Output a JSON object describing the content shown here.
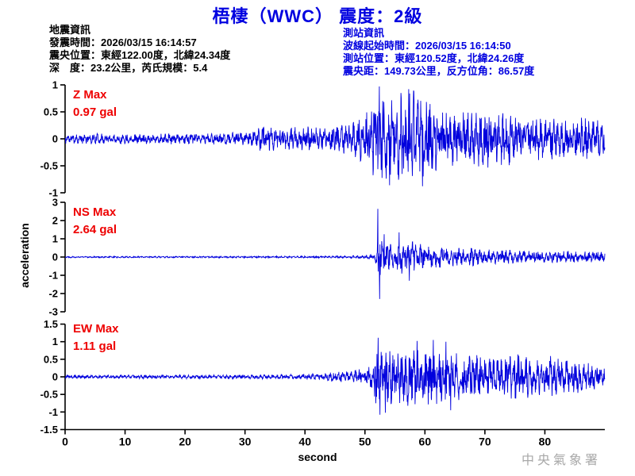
{
  "title": "梧棲（WWC） 震度：2級",
  "info_left": {
    "heading": "地震資訊",
    "lines": [
      "發震時間：2026/03/15 16:14:57",
      "震央位置：東經122.00度，北緯24.34度",
      "深　度：23.2公里，芮氏規模：5.4"
    ]
  },
  "info_right": {
    "heading": "測站資訊",
    "lines": [
      "波線起始時間：2026/03/15 16:14:50",
      "測站位置：東經120.52度，北緯24.26度",
      "震央距：149.73公里，反方位角：86.57度"
    ]
  },
  "watermark": "中央氣象署",
  "colors": {
    "title_blue": "#0000e0",
    "info_blue": "#0000e0",
    "trace_blue": "#0000dd",
    "annotation_red": "#ee0000",
    "axis_black": "#000000",
    "watermark_gray": "#a8a8a8"
  },
  "chart_data": {
    "type": "line",
    "subtype": "seismogram-3-component",
    "xlabel": "second",
    "ylabel": "acceleration",
    "unit": "gal",
    "x_range": [
      0,
      90
    ],
    "x_ticks": [
      0,
      10,
      20,
      30,
      40,
      50,
      60,
      70,
      80
    ],
    "grid": false,
    "traces": [
      {
        "id": "Z",
        "label": "Z Max",
        "max_label": "0.97 gal",
        "max_gal": 0.97,
        "ylim": [
          -1,
          1
        ],
        "yticks": [
          1,
          0.5,
          0,
          -0.5,
          -1
        ],
        "seed": 11,
        "envelope": [
          [
            0,
            0.09
          ],
          [
            15,
            0.09
          ],
          [
            25,
            0.1
          ],
          [
            31,
            0.12
          ],
          [
            33,
            0.25
          ],
          [
            34,
            0.22
          ],
          [
            36,
            0.18
          ],
          [
            38,
            0.2
          ],
          [
            40,
            0.22
          ],
          [
            43,
            0.2
          ],
          [
            46,
            0.25
          ],
          [
            48,
            0.3
          ],
          [
            50,
            0.45
          ],
          [
            51,
            0.6
          ],
          [
            52,
            0.85
          ],
          [
            53,
            0.95
          ],
          [
            54,
            0.85
          ],
          [
            55,
            0.7
          ],
          [
            56,
            0.85
          ],
          [
            57,
            0.75
          ],
          [
            58,
            0.9
          ],
          [
            59,
            0.75
          ],
          [
            60,
            0.8
          ],
          [
            61,
            0.65
          ],
          [
            62,
            0.6
          ],
          [
            64,
            0.5
          ],
          [
            66,
            0.45
          ],
          [
            68,
            0.5
          ],
          [
            70,
            0.55
          ],
          [
            72,
            0.45
          ],
          [
            74,
            0.5
          ],
          [
            76,
            0.4
          ],
          [
            78,
            0.35
          ],
          [
            80,
            0.42
          ],
          [
            82,
            0.35
          ],
          [
            84,
            0.3
          ],
          [
            86,
            0.4
          ],
          [
            88,
            0.35
          ],
          [
            90,
            0.3
          ]
        ],
        "peaks": [
          [
            52.4,
            0.97
          ],
          [
            54.1,
            -0.86
          ],
          [
            57.3,
            0.92
          ],
          [
            59.6,
            -0.88
          ]
        ]
      },
      {
        "id": "NS",
        "label": "NS Max",
        "max_label": "2.64 gal",
        "max_gal": 2.64,
        "ylim": [
          -3,
          3
        ],
        "yticks": [
          3,
          2,
          1,
          0,
          -1,
          -2,
          -3
        ],
        "seed": 22,
        "envelope": [
          [
            0,
            0.04
          ],
          [
            30,
            0.045
          ],
          [
            45,
            0.05
          ],
          [
            48,
            0.07
          ],
          [
            50,
            0.1
          ],
          [
            51.5,
            0.15
          ],
          [
            52,
            0.5
          ],
          [
            52.4,
            1.1
          ],
          [
            53,
            0.8
          ],
          [
            54,
            0.85
          ],
          [
            55,
            0.75
          ],
          [
            56,
            0.9
          ],
          [
            57,
            0.7
          ],
          [
            58,
            0.8
          ],
          [
            59,
            0.65
          ],
          [
            60,
            0.7
          ],
          [
            61,
            0.6
          ],
          [
            62,
            0.55
          ],
          [
            63,
            0.6
          ],
          [
            64,
            0.55
          ],
          [
            65,
            0.5
          ],
          [
            66,
            0.45
          ],
          [
            68,
            0.5
          ],
          [
            70,
            0.4
          ],
          [
            72,
            0.35
          ],
          [
            74,
            0.4
          ],
          [
            76,
            0.32
          ],
          [
            78,
            0.36
          ],
          [
            80,
            0.3
          ],
          [
            82,
            0.27
          ],
          [
            84,
            0.32
          ],
          [
            86,
            0.27
          ],
          [
            88,
            0.3
          ],
          [
            90,
            0.26
          ]
        ],
        "peaks": [
          [
            52.15,
            2.64
          ],
          [
            52.45,
            -2.3
          ],
          [
            53.2,
            1.25
          ],
          [
            55.7,
            1.35
          ],
          [
            57.4,
            -1.3
          ]
        ]
      },
      {
        "id": "EW",
        "label": "EW Max",
        "max_label": "1.11 gal",
        "max_gal": 1.11,
        "ylim": [
          -1.5,
          1.5
        ],
        "yticks": [
          1.5,
          1,
          0.5,
          0,
          -0.5,
          -1,
          -1.5
        ],
        "seed": 33,
        "envelope": [
          [
            0,
            0.05
          ],
          [
            25,
            0.05
          ],
          [
            35,
            0.06
          ],
          [
            40,
            0.08
          ],
          [
            43,
            0.1
          ],
          [
            45,
            0.13
          ],
          [
            47,
            0.16
          ],
          [
            49,
            0.2
          ],
          [
            50.5,
            0.25
          ],
          [
            51.3,
            0.5
          ],
          [
            51.8,
            1.0
          ],
          [
            52.5,
            0.9
          ],
          [
            53.5,
            0.8
          ],
          [
            55,
            0.75
          ],
          [
            56,
            0.8
          ],
          [
            58,
            0.85
          ],
          [
            60,
            0.75
          ],
          [
            61,
            0.8
          ],
          [
            63,
            0.7
          ],
          [
            65,
            0.65
          ],
          [
            67,
            0.6
          ],
          [
            69,
            0.65
          ],
          [
            71,
            0.55
          ],
          [
            73,
            0.6
          ],
          [
            75,
            0.65
          ],
          [
            77,
            0.55
          ],
          [
            79,
            0.5
          ],
          [
            81,
            0.55
          ],
          [
            83,
            0.5
          ],
          [
            85,
            0.45
          ],
          [
            87,
            0.4
          ],
          [
            89,
            0.32
          ],
          [
            90,
            0.3
          ]
        ],
        "peaks": [
          [
            52.2,
            1.11
          ],
          [
            52.5,
            -1.08
          ],
          [
            53.4,
            -1.02
          ],
          [
            58.7,
            1.02
          ],
          [
            61.4,
            1.05
          ],
          [
            63.5,
            1.0
          ],
          [
            64.3,
            -0.95
          ]
        ]
      }
    ]
  }
}
